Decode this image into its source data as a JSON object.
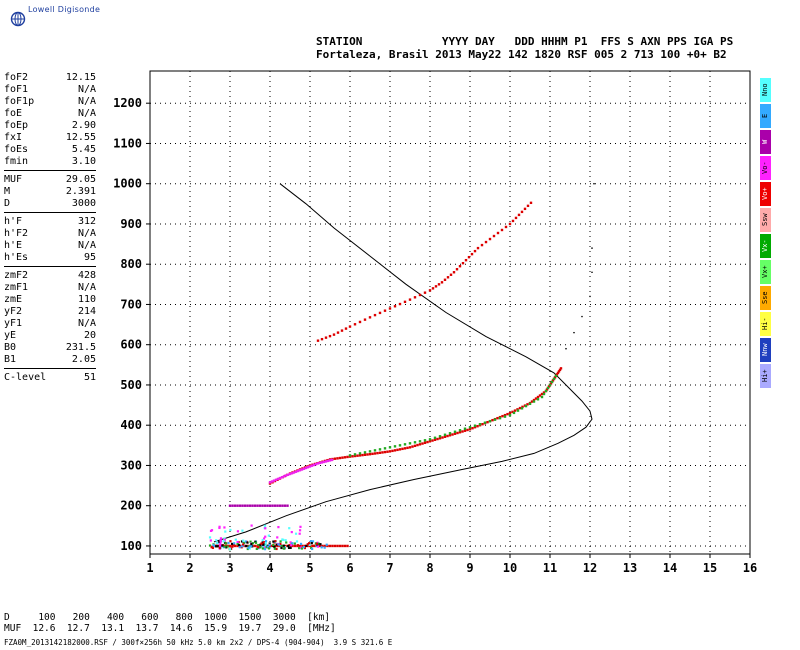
{
  "logo": {
    "text": "Lowell Digisonde"
  },
  "header": {
    "line1": "STATION            YYYY DAY   DDD HHHM P1  FFS S AXN PPS IGA PS",
    "line2": "Fortaleza, Brasil 2013 May22 142 1820 RSF 005 2 713 100 +0+ B2"
  },
  "params": [
    {
      "label": "foF2",
      "value": "12.15"
    },
    {
      "label": "foF1",
      "value": "N/A"
    },
    {
      "label": "foF1p",
      "value": "N/A"
    },
    {
      "label": "foE",
      "value": "N/A"
    },
    {
      "label": "foEp",
      "value": "2.90"
    },
    {
      "label": "fxI",
      "value": "12.55"
    },
    {
      "label": "foEs",
      "value": "5.45"
    },
    {
      "label": "fmin",
      "value": "3.10"
    },
    {
      "sep": true
    },
    {
      "label": "MUF",
      "value": "29.05"
    },
    {
      "label": "M",
      "value": "2.391"
    },
    {
      "label": "D",
      "value": "3000"
    },
    {
      "sep": true
    },
    {
      "label": "h'F",
      "value": "312"
    },
    {
      "label": "h'F2",
      "value": "N/A"
    },
    {
      "label": "h'E",
      "value": "N/A"
    },
    {
      "label": "h'Es",
      "value": "95"
    },
    {
      "sep": true
    },
    {
      "label": "zmF2",
      "value": "428"
    },
    {
      "label": "zmF1",
      "value": "N/A"
    },
    {
      "label": "zmE",
      "value": "110"
    },
    {
      "label": "yF2",
      "value": "214"
    },
    {
      "label": "yF1",
      "value": "N/A"
    },
    {
      "label": "yE",
      "value": "20"
    },
    {
      "label": "B0",
      "value": "231.5"
    },
    {
      "label": "B1",
      "value": "2.05"
    },
    {
      "sep": true
    },
    {
      "label": "C-level",
      "value": "51"
    }
  ],
  "legend": [
    {
      "label": "Nno",
      "color": "#55ffff"
    },
    {
      "label": "E",
      "color": "#33aaff"
    },
    {
      "label": "W",
      "color": "#aa00aa"
    },
    {
      "label": "Vo-",
      "color": "#ff22ff"
    },
    {
      "label": "Vo+",
      "color": "#ee0000"
    },
    {
      "label": "Ssw",
      "color": "#ffaaaa"
    },
    {
      "label": "Vx-",
      "color": "#00aa00"
    },
    {
      "label": "Vx+",
      "color": "#66ff66"
    },
    {
      "label": "Sse",
      "color": "#ffaa00"
    },
    {
      "label": "Hi-",
      "color": "#ffff44"
    },
    {
      "label": "Nnw",
      "color": "#1f3fbf"
    },
    {
      "label": "Hi+",
      "color": "#aaaaff"
    }
  ],
  "footer": {
    "line1": "D     100   200   400   600   800  1000  1500  3000  [km]",
    "line2": "MUF  12.6  12.7  13.1  13.7  14.6  15.9  19.7  29.0  [MHz]",
    "filename": "FZA0M_2013142182000.RSF / 300f×256h 50 kHz 5.0 km 2x2 / DPS-4 (904-904)  3.9 S 321.6 E"
  },
  "chart_data": {
    "type": "scatter",
    "xlim": [
      1,
      16
    ],
    "ylim": [
      80,
      1280
    ],
    "x_ticks": [
      "1",
      "2",
      "3",
      "4",
      "5",
      "6",
      "7",
      "8",
      "9",
      "10",
      "11",
      "12",
      "13",
      "14",
      "15",
      "16"
    ],
    "y_ticks": [
      "100",
      "200",
      "300",
      "400",
      "500",
      "600",
      "700",
      "800",
      "900",
      "1000",
      "1100",
      "1200"
    ],
    "grid": true,
    "series": [
      {
        "kind": "profile",
        "color": "#000000",
        "points": [
          [
            2.6,
            110
          ],
          [
            3.4,
            135
          ],
          [
            4.4,
            175
          ],
          [
            5.4,
            210
          ],
          [
            6.5,
            240
          ],
          [
            7.6,
            265
          ],
          [
            8.8,
            290
          ],
          [
            9.8,
            310
          ],
          [
            10.6,
            330
          ],
          [
            11.2,
            355
          ],
          [
            11.6,
            375
          ],
          [
            11.9,
            395
          ],
          [
            12.05,
            415
          ],
          [
            12.0,
            435
          ],
          [
            11.8,
            460
          ],
          [
            11.45,
            495
          ],
          [
            11.1,
            530
          ],
          [
            10.4,
            570
          ],
          [
            9.4,
            620
          ],
          [
            8.4,
            680
          ],
          [
            7.4,
            750
          ],
          [
            6.5,
            820
          ],
          [
            5.6,
            890
          ],
          [
            4.9,
            950
          ],
          [
            4.25,
            1000
          ]
        ]
      },
      {
        "kind": "echo",
        "color": "#dd0000",
        "points": [
          [
            4.0,
            255
          ],
          [
            4.5,
            280
          ],
          [
            5.0,
            300
          ],
          [
            5.5,
            315
          ],
          [
            6.0,
            322
          ],
          [
            6.5,
            328
          ],
          [
            7.0,
            335
          ],
          [
            7.5,
            345
          ],
          [
            8.0,
            360
          ],
          [
            8.5,
            375
          ],
          [
            9.0,
            390
          ],
          [
            9.5,
            410
          ],
          [
            10.0,
            430
          ],
          [
            10.5,
            455
          ],
          [
            10.9,
            485
          ],
          [
            11.1,
            515
          ],
          [
            11.3,
            545
          ]
        ]
      },
      {
        "kind": "echo",
        "color": "#ee22ee",
        "points": [
          [
            4.0,
            258
          ],
          [
            4.4,
            275
          ],
          [
            4.8,
            290
          ],
          [
            5.2,
            305
          ],
          [
            5.6,
            315
          ]
        ]
      },
      {
        "kind": "echo",
        "color": "#22aa22",
        "points": [
          [
            6.0,
            325
          ],
          [
            7.0,
            345
          ],
          [
            8.0,
            365
          ],
          [
            9.0,
            395
          ],
          [
            10.0,
            425
          ],
          [
            10.8,
            470
          ],
          [
            11.2,
            530
          ]
        ]
      },
      {
        "kind": "echo2",
        "color": "#dd0000",
        "points": [
          [
            5.2,
            610
          ],
          [
            5.6,
            625
          ],
          [
            6.0,
            645
          ],
          [
            6.5,
            668
          ],
          [
            7.0,
            690
          ],
          [
            7.5,
            712
          ],
          [
            8.0,
            735
          ],
          [
            8.3,
            755
          ],
          [
            8.6,
            780
          ],
          [
            8.9,
            810
          ],
          [
            9.2,
            840
          ],
          [
            9.6,
            870
          ],
          [
            10.0,
            900
          ],
          [
            10.3,
            930
          ],
          [
            10.6,
            960
          ]
        ]
      },
      {
        "kind": "eslayer",
        "color": "#dd0000",
        "points": [
          [
            2.6,
            100
          ],
          [
            3.0,
            100
          ],
          [
            3.5,
            100
          ],
          [
            4.0,
            100
          ],
          [
            4.5,
            100
          ],
          [
            5.0,
            100
          ],
          [
            5.5,
            100
          ],
          [
            6.0,
            100
          ]
        ]
      },
      {
        "kind": "eslayer2",
        "color": "#aa00aa",
        "points": [
          [
            3.0,
            200
          ],
          [
            3.5,
            200
          ],
          [
            4.0,
            200
          ],
          [
            4.5,
            200
          ]
        ]
      },
      {
        "kind": "right-edge",
        "color": "#000000",
        "points": [
          [
            11.4,
            590
          ],
          [
            11.6,
            630
          ],
          [
            11.8,
            670
          ],
          [
            12.0,
            720
          ],
          [
            12.05,
            780
          ],
          [
            12.05,
            840
          ],
          [
            12.1,
            1000
          ]
        ]
      }
    ]
  }
}
